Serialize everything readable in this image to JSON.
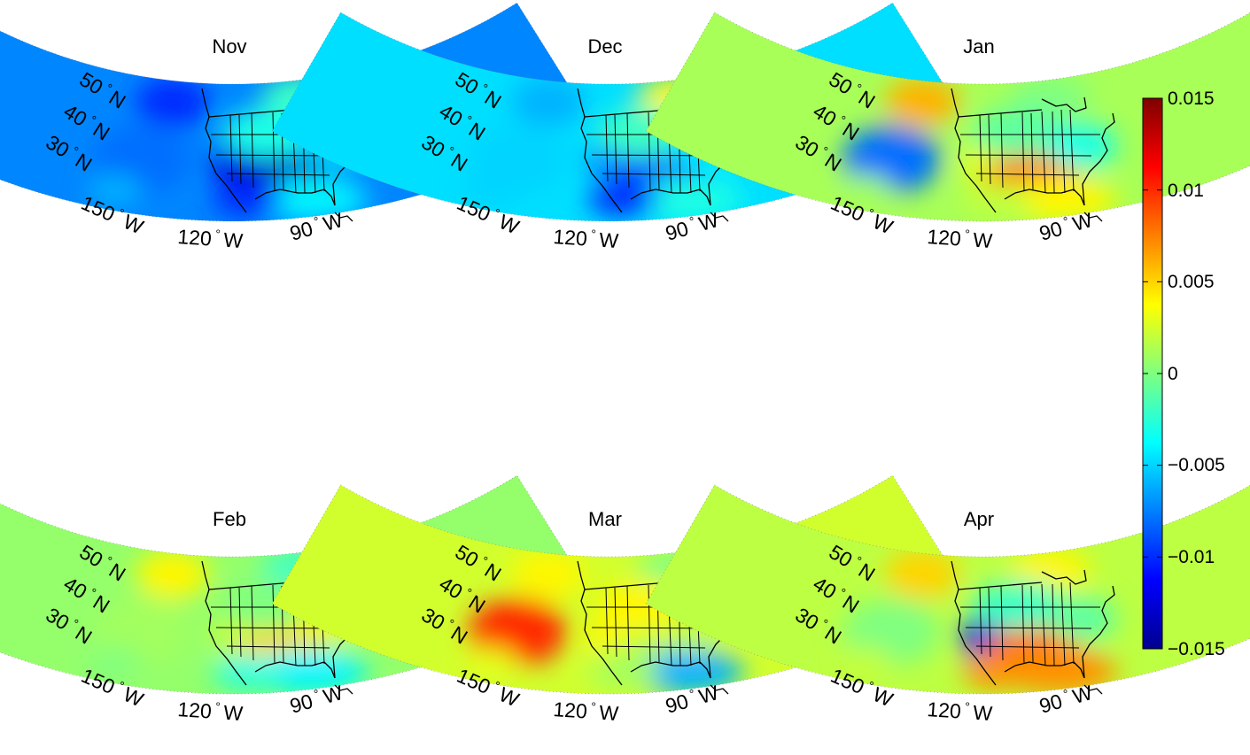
{
  "figure": {
    "panels": [
      {
        "title": "Nov",
        "pattern": [
          -0.01,
          -0.008,
          -0.012,
          -0.013,
          -0.004,
          -0.002,
          -0.003,
          -0.005,
          -0.01,
          -0.006
        ]
      },
      {
        "title": "Dec",
        "pattern": [
          -0.006,
          -0.005,
          -0.007,
          -0.009,
          -0.003,
          0.004,
          -0.002,
          -0.004,
          -0.01,
          -0.005
        ]
      },
      {
        "title": "Jan",
        "pattern": [
          0.006,
          -0.008,
          0.003,
          0.008,
          0.004,
          0.0,
          -0.001,
          -0.003,
          0.002,
          0.001
        ]
      },
      {
        "title": "Feb",
        "pattern": [
          0.004,
          0.001,
          0.002,
          0.005,
          -0.004,
          -0.002,
          0.0,
          0.003,
          -0.003,
          0.0
        ]
      },
      {
        "title": "Mar",
        "pattern": [
          0.004,
          0.01,
          0.004,
          0.002,
          -0.006,
          0.0,
          0.004,
          0.002,
          0.001,
          0.003
        ]
      },
      {
        "title": "Apr",
        "pattern": [
          0.005,
          0.0,
          -0.012,
          0.008,
          0.007,
          0.004,
          -0.002,
          -0.001,
          0.007,
          0.002
        ]
      }
    ],
    "lat_labels": [
      "50",
      "40",
      "30"
    ],
    "lat_hemisphere": "N",
    "lon_labels": [
      "150",
      "120",
      "90"
    ],
    "lon_hemisphere": "W",
    "degree_symbol": "°",
    "colorbar": {
      "min": -0.015,
      "max": 0.015,
      "ticks": [
        "0.015",
        "0.01",
        "0.005",
        "0",
        "−0.005",
        "−0.01",
        "−0.015"
      ],
      "colormap": "jet"
    }
  }
}
